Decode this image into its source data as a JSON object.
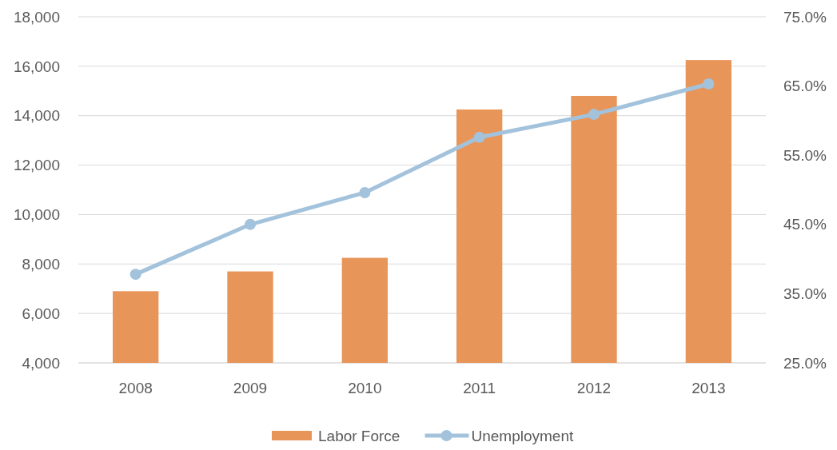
{
  "chart_data": {
    "type": "bar",
    "categories": [
      "2008",
      "2009",
      "2010",
      "2011",
      "2012",
      "2013"
    ],
    "series": [
      {
        "name": "Labor Force",
        "color": "#e8955a",
        "values": [
          6900,
          7700,
          8250,
          14250,
          14800,
          16250
        ]
      },
      {
        "name": "Unemployment",
        "type": "line",
        "axis": "y2",
        "color": "#a3c2dc",
        "marker": "circle",
        "values": [
          37.8,
          45.0,
          49.6,
          57.6,
          60.9,
          65.3
        ]
      }
    ],
    "ylim": [
      4000,
      18000
    ],
    "yticks": [
      {
        "value": 4000,
        "label": "4,000"
      },
      {
        "value": 6000,
        "label": "6,000"
      },
      {
        "value": 8000,
        "label": "8,000"
      },
      {
        "value": 10000,
        "label": "10,000"
      },
      {
        "value": 12000,
        "label": "12,000"
      },
      {
        "value": 14000,
        "label": "14,000"
      },
      {
        "value": 16000,
        "label": "16,000"
      },
      {
        "value": 18000,
        "label": "18,000"
      }
    ],
    "y2lim": [
      25,
      75
    ],
    "y2ticks": [
      {
        "value": 25,
        "label": "25.0%"
      },
      {
        "value": 35,
        "label": "35.0%"
      },
      {
        "value": 45,
        "label": "45.0%"
      },
      {
        "value": 55,
        "label": "55.0%"
      },
      {
        "value": 65,
        "label": "65.0%"
      },
      {
        "value": 75,
        "label": "75.0%"
      }
    ],
    "grid": "y",
    "legend": "bottom"
  }
}
